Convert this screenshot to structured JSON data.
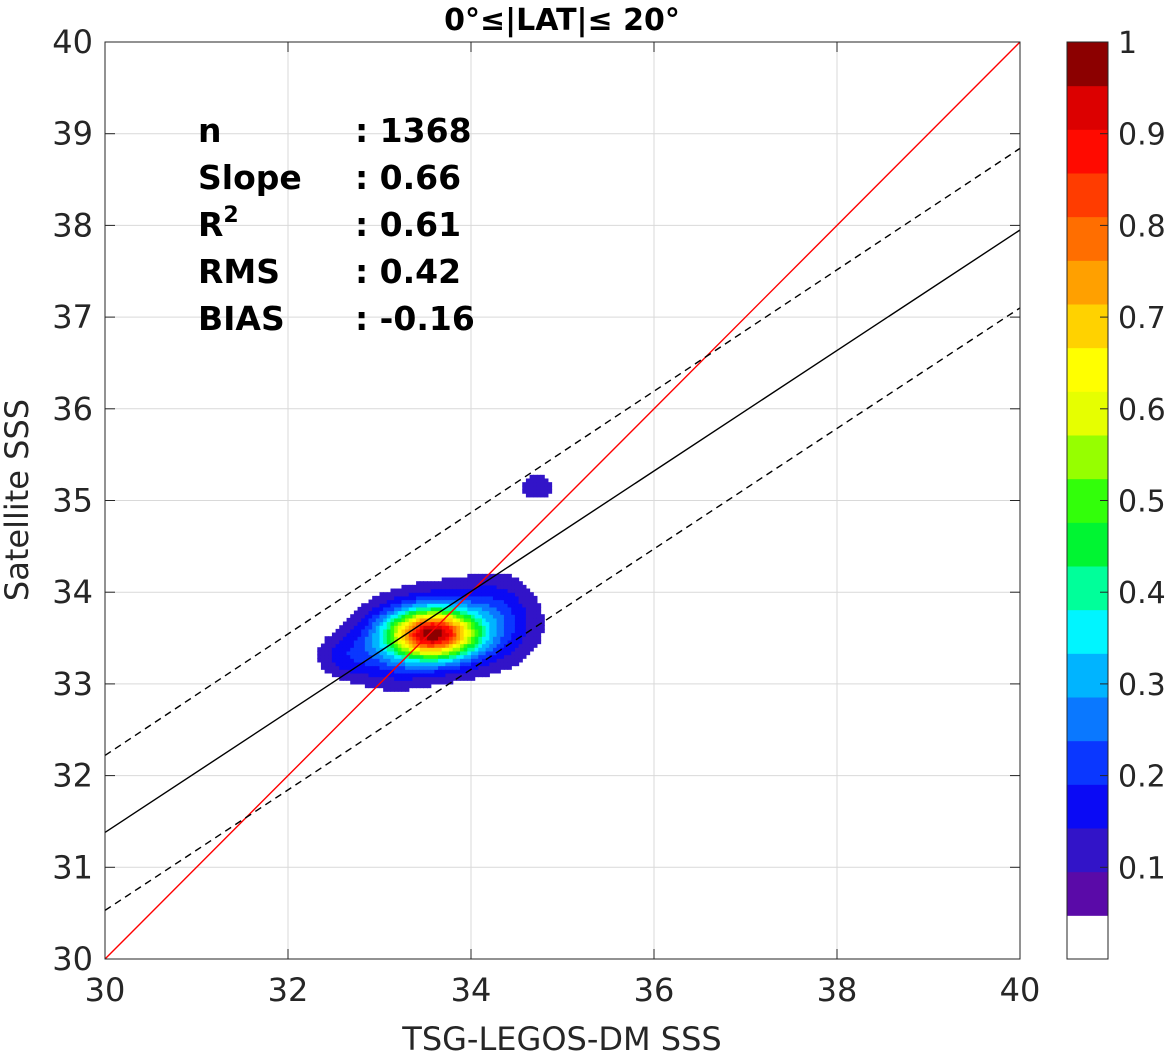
{
  "chart_data": {
    "type": "heatmap",
    "title": "0°≤|LAT|≤ 20°",
    "xlabel": "TSG-LEGOS-DM SSS",
    "ylabel": "Satellite SSS",
    "xlim": [
      30,
      40
    ],
    "ylim": [
      30,
      40
    ],
    "xticks": [
      30,
      32,
      34,
      36,
      38,
      40
    ],
    "yticks": [
      30,
      31,
      32,
      33,
      34,
      35,
      36,
      37,
      38,
      39,
      40
    ],
    "grid": true,
    "stats": [
      {
        "label": "n",
        "value": ": 1368"
      },
      {
        "label": "Slope",
        "value": ": 0.66"
      },
      {
        "label": "R",
        "sup": "2",
        "value": ": 0.61"
      },
      {
        "label": "RMS",
        "value": ": 0.42"
      },
      {
        "label": "BIAS",
        "value": ": -0.16"
      }
    ],
    "lines": [
      {
        "kind": "identity",
        "color": "#ff0000",
        "dash": false,
        "points": [
          [
            30,
            30
          ],
          [
            40,
            40
          ]
        ]
      },
      {
        "kind": "fit",
        "color": "#000000",
        "dash": false,
        "points": [
          [
            30,
            31.38
          ],
          [
            40,
            37.95
          ]
        ]
      },
      {
        "kind": "fit-upper",
        "color": "#000000",
        "dash": true,
        "points": [
          [
            30,
            32.22
          ],
          [
            40,
            38.84
          ]
        ]
      },
      {
        "kind": "fit-lower",
        "color": "#000000",
        "dash": true,
        "points": [
          [
            30,
            30.53
          ],
          [
            40,
            37.1
          ]
        ]
      }
    ],
    "density_blobs": [
      {
        "cx": 33.58,
        "cy": 33.55,
        "sx": 0.32,
        "sy": 0.18,
        "amp": 1.0
      },
      {
        "cx": 33.8,
        "cy": 33.6,
        "sx": 0.55,
        "sy": 0.32,
        "amp": 0.22
      },
      {
        "cx": 33.1,
        "cy": 33.35,
        "sx": 0.35,
        "sy": 0.28,
        "amp": 0.15
      },
      {
        "cx": 32.6,
        "cy": 33.3,
        "sx": 0.22,
        "sy": 0.16,
        "amp": 0.1
      },
      {
        "cx": 34.3,
        "cy": 33.8,
        "sx": 0.28,
        "sy": 0.3,
        "amp": 0.1
      },
      {
        "cx": 34.72,
        "cy": 35.15,
        "sx": 0.18,
        "sy": 0.14,
        "amp": 0.09
      }
    ],
    "colorbar": {
      "min": 0,
      "max": 1,
      "ticks": [
        0.1,
        0.2,
        0.3,
        0.4,
        0.5,
        0.6,
        0.7,
        0.8,
        0.9,
        1
      ],
      "tick_labels": [
        "0.1",
        "0.2",
        "0.3",
        "0.4",
        "0.5",
        "0.6",
        "0.7",
        "0.8",
        "0.9",
        "1"
      ],
      "colors": [
        "#ffffff",
        "#5a0aa8",
        "#3214c8",
        "#0a0af5",
        "#0a37ff",
        "#0a78ff",
        "#00b4ff",
        "#00f5ff",
        "#00ff9a",
        "#00f532",
        "#32ff0a",
        "#96ff00",
        "#e6ff00",
        "#ffff00",
        "#ffd200",
        "#ffa000",
        "#ff6e00",
        "#ff3c00",
        "#ff0a00",
        "#dc0000",
        "#8c0000"
      ]
    },
    "colors": {
      "text": "#262626",
      "grid": "#d9d9d9",
      "axes": "#262626"
    }
  }
}
